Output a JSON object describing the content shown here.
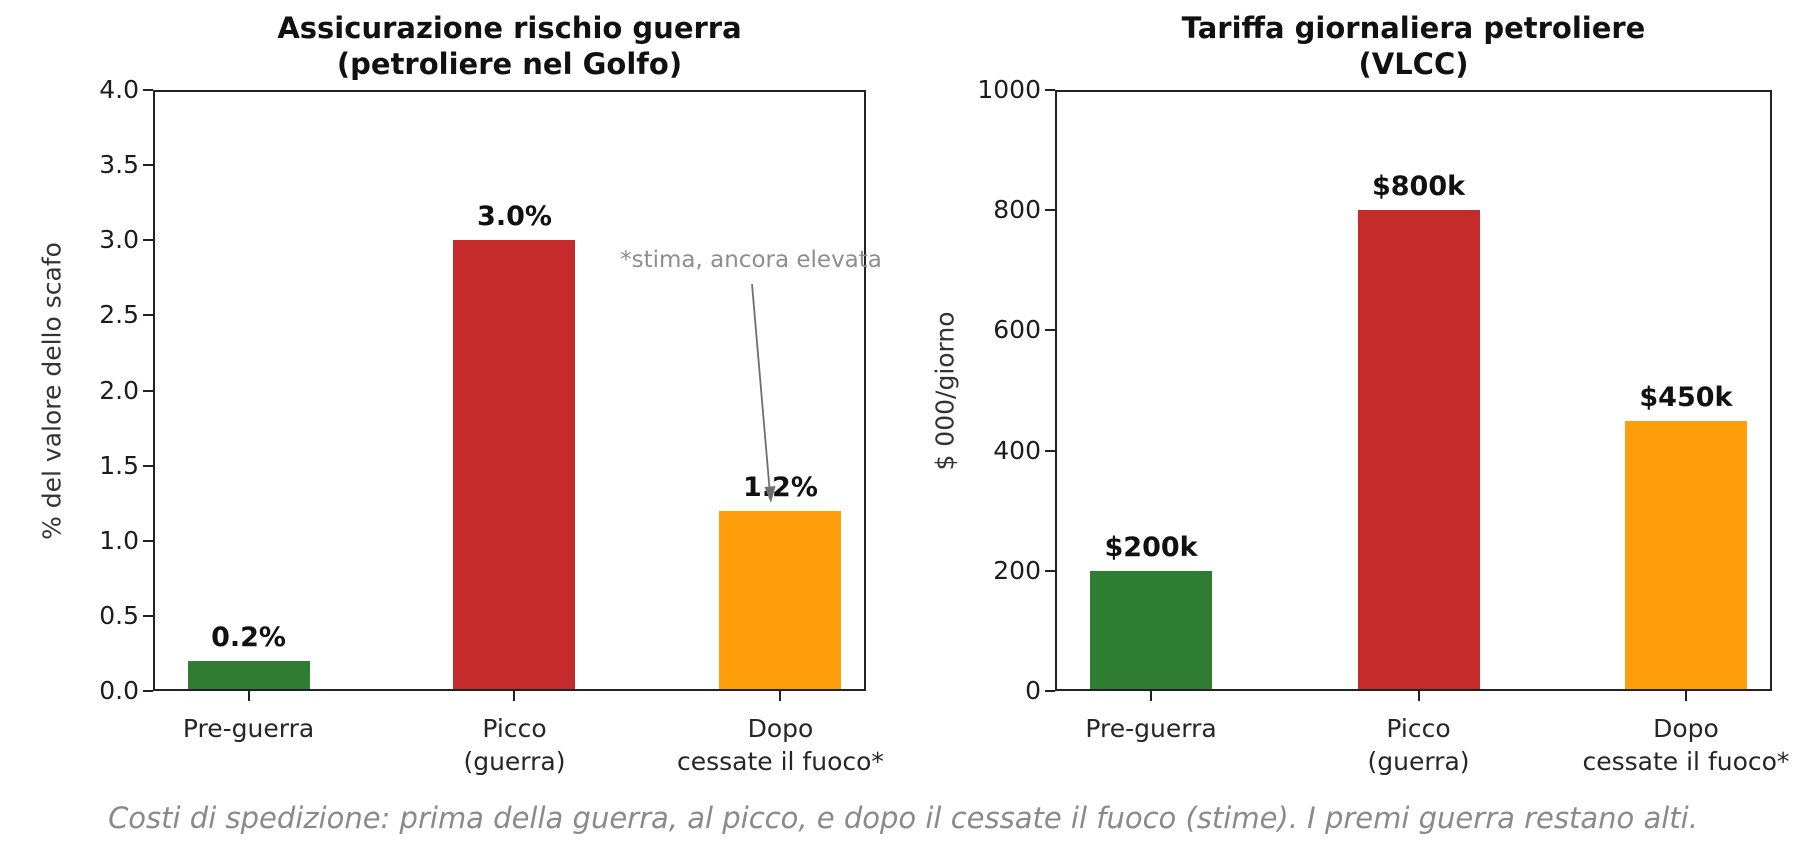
{
  "caption": "Costi di spedizione: prima della guerra, al picco, e dopo il cessate il fuoco (stime). I premi guerra restano alti.",
  "colors": {
    "green": "#2e7d32",
    "red": "#c52b2b",
    "orange": "#ff9d0a",
    "axis": "#222222",
    "annotation_gray": "#8e8e8e",
    "caption_gray": "#8a8a8a"
  },
  "chart_data": [
    {
      "type": "bar",
      "title": "Assicurazione rischio guerra\n(petroliere nel Golfo)",
      "categories": [
        "Pre-guerra",
        "Picco\n(guerra)",
        "Dopo\ncessate il fuoco*"
      ],
      "values": [
        0.2,
        3.0,
        1.2
      ],
      "bar_labels": [
        "0.2%",
        "3.0%",
        "1.2%"
      ],
      "bar_colors": [
        "#2e7d32",
        "#c52b2b",
        "#ff9d0a"
      ],
      "xlabel": "",
      "ylabel": "% del valore dello scafo",
      "ylim": [
        0,
        4
      ],
      "yticks": [
        0.0,
        0.5,
        1.0,
        1.5,
        2.0,
        2.5,
        3.0,
        3.5,
        4.0
      ],
      "ytick_labels": [
        "0.0",
        "0.5",
        "1.0",
        "1.5",
        "2.0",
        "2.5",
        "3.0",
        "3.5",
        "4.0"
      ],
      "grid": false,
      "legend": "none",
      "annotation": {
        "text": "*stima, ancora elevata",
        "points_to_category": "Dopo\ncessate il fuoco*",
        "points_to_value": 1.2
      }
    },
    {
      "type": "bar",
      "title": "Tariffa giornaliera petroliere\n(VLCC)",
      "categories": [
        "Pre-guerra",
        "Picco\n(guerra)",
        "Dopo\ncessate il fuoco*"
      ],
      "values": [
        200,
        800,
        450
      ],
      "bar_labels": [
        "$200k",
        "$800k",
        "$450k"
      ],
      "bar_colors": [
        "#2e7d32",
        "#c52b2b",
        "#ff9d0a"
      ],
      "xlabel": "",
      "ylabel": "$ 000/giorno",
      "ylim": [
        0,
        1000
      ],
      "yticks": [
        0,
        200,
        400,
        600,
        800,
        1000
      ],
      "ytick_labels": [
        "0",
        "200",
        "400",
        "600",
        "800",
        "1000"
      ],
      "grid": false,
      "legend": "none"
    }
  ]
}
